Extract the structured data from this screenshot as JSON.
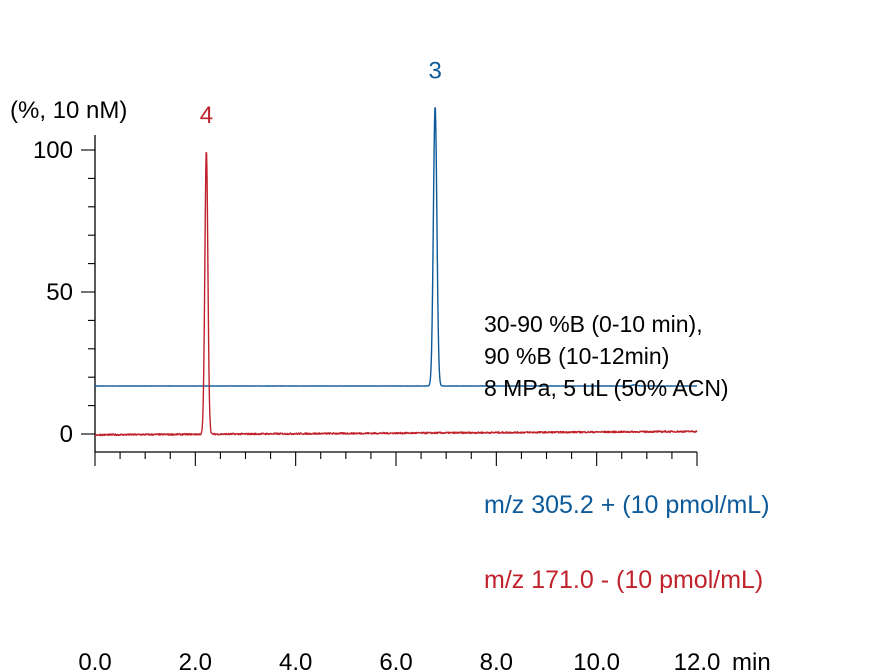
{
  "chart_data": {
    "type": "line",
    "ylabel": "(%, 10 nM)",
    "xunit": "min",
    "xlim": [
      0,
      12
    ],
    "ylim": [
      0,
      100
    ],
    "x_ticks": [
      "0.0",
      "2.0",
      "4.0",
      "6.0",
      "8.0",
      "10.0",
      "12.0"
    ],
    "y_ticks": [
      {
        "value": 0,
        "label": "0"
      },
      {
        "value": 50,
        "label": "50"
      },
      {
        "value": 100,
        "label": "100"
      }
    ],
    "annotations": [
      "30-90 %B (0-10 min),",
      "90 %B (10-12min)",
      "8 MPa, 5 uL (50% ACN)"
    ],
    "series": [
      {
        "name": "m/z 305.2 + (10 pmol/mL)",
        "peak_label": "3",
        "color": "#0d5a9b",
        "baseline": 16.9,
        "peaks": [
          {
            "x": 6.78,
            "height": 98.5,
            "width": 0.035
          },
          {
            "x": 10.75,
            "height": 0.4,
            "width": 0.05
          }
        ]
      },
      {
        "name": "m/z 171.0 - (10 pmol/mL)",
        "peak_label": "4",
        "color": "#c0222c",
        "baseline": -0.3,
        "baseline_end": 0.9,
        "peaks": [
          {
            "x": 2.22,
            "height": 100,
            "width": 0.03
          }
        ]
      }
    ]
  }
}
